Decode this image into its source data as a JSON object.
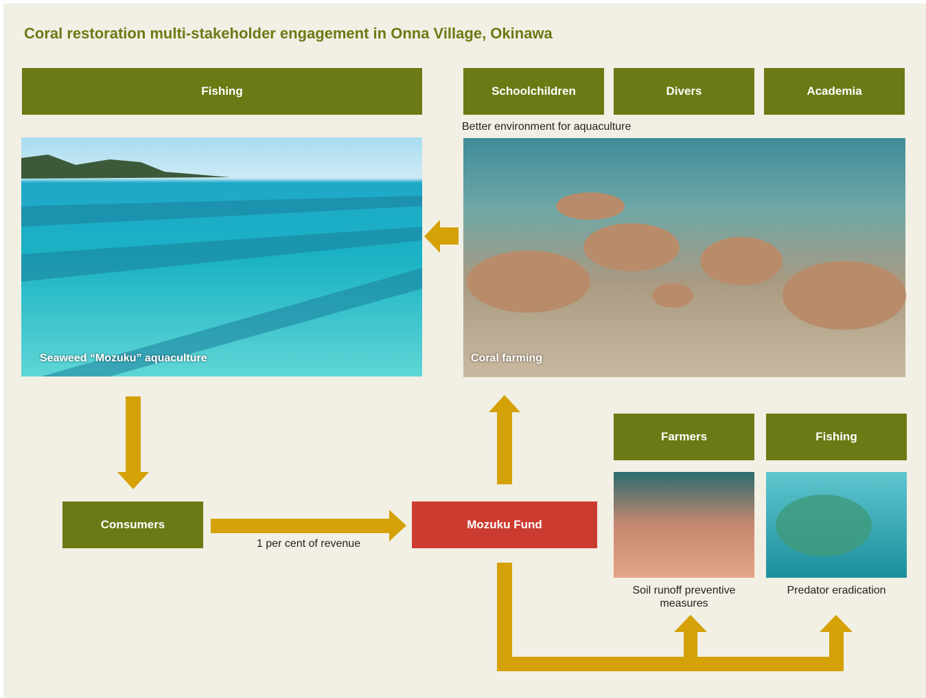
{
  "title": "Coral restoration multi-stakeholder engagement in Onna Village, Okinawa",
  "boxes": [
    "Fishing",
    "Schoolchildren",
    "Divers",
    "Academia",
    "Consumers",
    "Mozuku Fund",
    "Farmers",
    "Fishing"
  ],
  "photos": [
    {
      "caption": "Seaweed “Mozuku” aquaculture"
    },
    {
      "caption": "Coral farming"
    },
    {
      "caption": "Soil runoff preventive measures"
    },
    {
      "caption": "Predator eradication"
    }
  ],
  "labels": [
    "Better environment for aquaculture",
    "1 per cent of revenue"
  ]
}
